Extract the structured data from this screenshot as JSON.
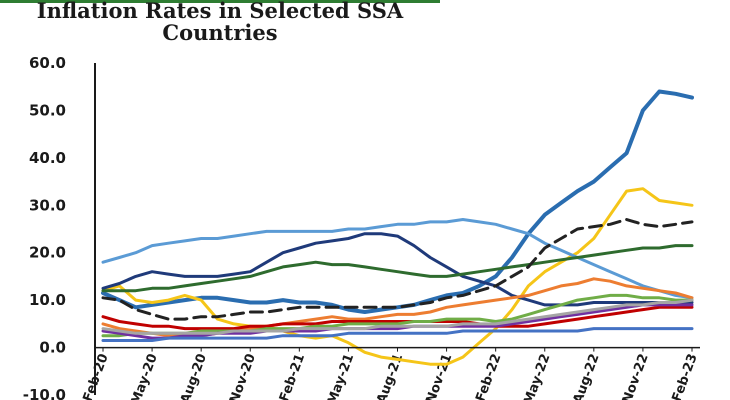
{
  "chart_data": {
    "type": "line",
    "title": "Inflation Rates in Selected SSA Countries",
    "xlabel": "",
    "ylabel": "",
    "ylim": [
      -10,
      60
    ],
    "yticks": [
      "60.0",
      "50.0",
      "40.0",
      "30.0",
      "20.0",
      "10.0",
      "0.0",
      "-10.0"
    ],
    "x": [
      "Feb-20",
      "Mar-20",
      "Apr-20",
      "May-20",
      "Jun-20",
      "Jul-20",
      "Aug-20",
      "Sep-20",
      "Oct-20",
      "Nov-20",
      "Dec-20",
      "Jan-21",
      "Feb-21",
      "Mar-21",
      "Apr-21",
      "May-21",
      "Jun-21",
      "Jul-21",
      "Aug-21",
      "Sep-21",
      "Oct-21",
      "Nov-21",
      "Dec-21",
      "Jan-22",
      "Feb-22",
      "Mar-22",
      "Apr-22",
      "May-22",
      "Jun-22",
      "Jul-22",
      "Aug-22",
      "Sep-22",
      "Oct-22",
      "Nov-22",
      "Dec-22",
      "Jan-23",
      "Feb-23"
    ],
    "xtick_labels": [
      "Feb-20",
      "May-20",
      "Aug-20",
      "Nov-20",
      "Feb-21",
      "May-21",
      "Aug-21",
      "Nov-21",
      "Feb-22",
      "May-22",
      "Aug-22",
      "Nov-22",
      "Feb-23"
    ],
    "grid": false,
    "series": [
      {
        "color": "#2a6db0",
        "dashed": false,
        "values": [
          11.5,
          10,
          8.5,
          9,
          9.5,
          10,
          10.5,
          10.5,
          10,
          9.5,
          9.5,
          10,
          9.5,
          9.5,
          9,
          8,
          7.5,
          8,
          8.5,
          9,
          10,
          11,
          11.5,
          13,
          15,
          19,
          24,
          28,
          30.5,
          33,
          35,
          38,
          41,
          50,
          54,
          53.5,
          52.7
        ]
      },
      {
        "color": "#f5c518",
        "dashed": false,
        "values": [
          12,
          13,
          10,
          9.5,
          10,
          11,
          10,
          6,
          5,
          4.5,
          4.5,
          3.5,
          2.5,
          2,
          2.5,
          1,
          -1,
          -2,
          -2.5,
          -3,
          -3.5,
          -3.5,
          -2,
          1,
          4,
          8,
          13,
          16,
          18,
          20,
          23,
          28,
          33,
          33.5,
          31,
          30.5,
          30
        ]
      },
      {
        "color": "#5b9bd5",
        "dashed": false,
        "values": [
          18,
          19,
          20,
          21.5,
          22,
          22.5,
          23,
          23,
          23.5,
          24,
          24.5,
          24.5,
          24.5,
          24.5,
          24.5,
          25,
          25,
          25.5,
          26,
          26,
          26.5,
          26.5,
          27,
          26.5,
          26,
          25,
          24,
          22,
          20.5,
          19,
          17.5,
          16,
          14.5,
          13,
          12,
          11,
          10.5
        ]
      },
      {
        "color": "#1f3a7a",
        "dashed": false,
        "values": [
          12.5,
          13.5,
          15,
          16,
          15.5,
          15,
          15,
          15,
          15.5,
          16,
          18,
          20,
          21,
          22,
          22.5,
          23,
          24,
          24,
          23.5,
          21.5,
          19,
          17,
          15,
          14,
          13,
          11,
          10,
          9,
          9,
          9,
          9.5,
          9.5,
          9.5,
          9.5,
          9.5,
          9.5,
          9.5
        ]
      },
      {
        "color": "#2e6b2e",
        "dashed": false,
        "values": [
          12,
          12,
          12,
          12.5,
          12.5,
          13,
          13.5,
          14,
          14.5,
          15,
          16,
          17,
          17.5,
          18,
          17.5,
          17.5,
          17,
          16.5,
          16,
          15.5,
          15,
          15,
          15.5,
          16,
          16.5,
          17,
          17.5,
          18,
          18.5,
          19,
          19.5,
          20,
          20.5,
          21,
          21,
          21.5,
          21.5
        ]
      },
      {
        "color": "#222222",
        "dashed": true,
        "values": [
          10.5,
          10,
          8,
          7,
          6,
          6,
          6.5,
          6.5,
          7,
          7.5,
          7.5,
          8,
          8.5,
          8.5,
          8.5,
          8.5,
          8.5,
          8.5,
          8.5,
          9,
          9.5,
          10.5,
          11,
          12,
          13,
          15,
          17,
          21,
          23,
          25,
          25.5,
          26,
          27,
          26,
          25.5,
          26,
          26.5
        ]
      },
      {
        "color": "#ed7d31",
        "dashed": false,
        "values": [
          5,
          4,
          3.5,
          3,
          2.5,
          2.5,
          2.5,
          3,
          3.5,
          4,
          4.5,
          5,
          5.5,
          6,
          6.5,
          6,
          6,
          6.5,
          7,
          7,
          7.5,
          8.5,
          9,
          9.5,
          10,
          10.5,
          11,
          12,
          13,
          13.5,
          14.5,
          14,
          13,
          12.5,
          12,
          11.5,
          10.5
        ]
      },
      {
        "color": "#c00000",
        "dashed": false,
        "values": [
          6.5,
          5.5,
          5,
          4.5,
          4.5,
          4,
          4,
          4,
          4,
          4.5,
          4.5,
          5,
          5,
          5,
          5.5,
          5.5,
          5.5,
          5.5,
          5.5,
          5.5,
          5.5,
          5.5,
          5.5,
          5,
          4.5,
          4.5,
          4.5,
          5,
          5.5,
          6,
          6.5,
          7,
          7.5,
          8,
          8.5,
          8.5,
          8.5
        ]
      },
      {
        "color": "#70ad47",
        "dashed": false,
        "values": [
          2.5,
          2.5,
          3,
          3,
          3,
          3,
          3.5,
          3.5,
          3.5,
          3.5,
          4,
          4,
          4,
          4.5,
          4.5,
          5,
          5,
          5,
          5,
          5.5,
          5.5,
          6,
          6,
          6,
          5.5,
          6,
          7,
          8,
          9,
          10,
          10.5,
          11,
          11,
          10.5,
          10.5,
          10,
          10
        ]
      },
      {
        "color": "#7030a0",
        "dashed": false,
        "values": [
          3.5,
          3,
          2.5,
          2,
          2,
          2.5,
          2.5,
          3,
          3,
          3,
          3.5,
          3.5,
          3.5,
          3.5,
          4,
          4,
          4,
          4,
          4,
          4.5,
          4.5,
          4.5,
          4.5,
          4.5,
          4.5,
          5,
          5.5,
          6,
          6.5,
          7,
          7.5,
          8,
          8.5,
          9,
          9,
          9,
          9
        ]
      },
      {
        "color": "#4472c4",
        "dashed": false,
        "values": [
          1.5,
          1.5,
          1.5,
          1.5,
          2,
          2,
          2,
          2,
          2,
          2,
          2,
          2.5,
          2.5,
          2.5,
          2.5,
          3,
          3,
          3,
          3,
          3,
          3,
          3,
          3.5,
          3.5,
          3.5,
          3.5,
          3.5,
          3.5,
          3.5,
          3.5,
          4,
          4,
          4,
          4,
          4,
          4,
          4
        ]
      },
      {
        "color": "#a5a5a5",
        "dashed": false,
        "values": [
          4,
          3.5,
          3,
          3,
          3,
          3,
          3,
          3,
          3.5,
          3.5,
          3.5,
          3.5,
          4,
          4,
          4,
          4,
          4,
          4.5,
          4.5,
          4.5,
          4.5,
          4.5,
          5,
          5,
          5,
          5.5,
          6,
          6.5,
          7,
          7.5,
          8,
          8.5,
          9,
          9,
          9.5,
          9.5,
          10
        ]
      }
    ]
  }
}
